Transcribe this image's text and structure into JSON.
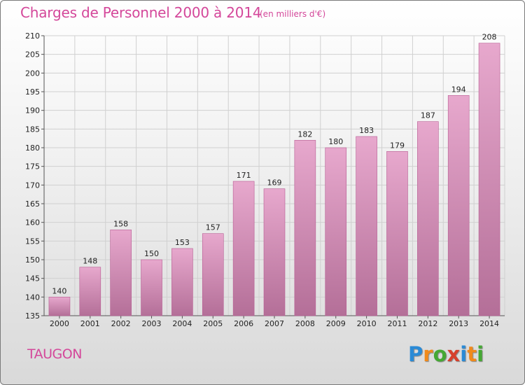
{
  "header": {
    "title": "Charges de Personnel 2000 à 2014",
    "subtitle": "(en milliers d'€)"
  },
  "commune": "TAUGON",
  "logo": {
    "letters": [
      {
        "char": "P",
        "color": "#2a8ad6"
      },
      {
        "char": "r",
        "color": "#f08a1c"
      },
      {
        "char": "o",
        "color": "#45a833"
      },
      {
        "char": "x",
        "color": "#d6402c"
      },
      {
        "char": "i",
        "color": "#2a8ad6"
      },
      {
        "char": "t",
        "color": "#f08a1c"
      },
      {
        "char": "i",
        "color": "#45a833"
      }
    ]
  },
  "colors": {
    "accent": "#d4479a",
    "bar_top": "#e7a8cd",
    "bar_bottom": "#b46f98",
    "bar_stroke": "#b85d93"
  },
  "chart_data": {
    "type": "bar",
    "title": "Charges de Personnel 2000 à 2014",
    "subtitle": "(en milliers d'€)",
    "categories": [
      "2000",
      "2001",
      "2002",
      "2003",
      "2004",
      "2005",
      "2006",
      "2007",
      "2008",
      "2009",
      "2010",
      "2011",
      "2012",
      "2013",
      "2014"
    ],
    "values": [
      140,
      148,
      158,
      150,
      153,
      157,
      171,
      169,
      182,
      180,
      183,
      179,
      187,
      194,
      208
    ],
    "ylim": [
      135,
      210
    ],
    "yticks": [
      135,
      140,
      145,
      150,
      155,
      160,
      165,
      170,
      175,
      180,
      185,
      190,
      195,
      200,
      205,
      210
    ],
    "grid": true,
    "legend": "none"
  }
}
